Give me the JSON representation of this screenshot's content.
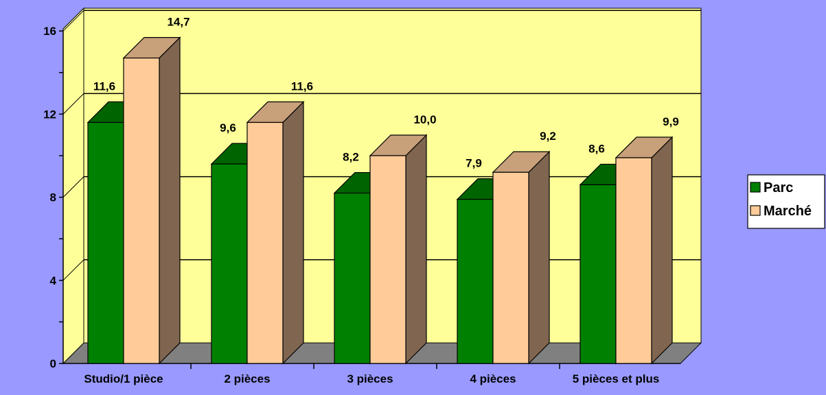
{
  "chart_data": {
    "type": "bar",
    "categories": [
      "Studio/1 pièce",
      "2 pièces",
      "3 pièces",
      "4 pièces",
      "5 pièces et plus"
    ],
    "series": [
      {
        "name": "Parc",
        "values": [
          11.6,
          9.6,
          8.2,
          7.9,
          8.6
        ],
        "labels": [
          "11,6",
          "9,6",
          "8,2",
          "7,9",
          "8,6"
        ],
        "color": "#008000"
      },
      {
        "name": "Marché",
        "values": [
          14.7,
          11.6,
          10.0,
          9.2,
          9.9
        ],
        "labels": [
          "14,7",
          "11,6",
          "10,0",
          "9,2",
          "9,9"
        ],
        "color": "#ffcc99"
      }
    ],
    "yticks": [
      "0",
      "4",
      "8",
      "12",
      "16"
    ],
    "ylim": [
      0,
      16
    ],
    "grid": true,
    "legend": "right",
    "colors": {
      "background": "#9999ff",
      "plot_wall": "#ffff99",
      "floor": "#808080",
      "parc_front": "#008000",
      "parc_side": "#006400",
      "marche_front": "#ffcc99",
      "marche_side": "#806650",
      "marche_top": "#c8a07a"
    }
  }
}
